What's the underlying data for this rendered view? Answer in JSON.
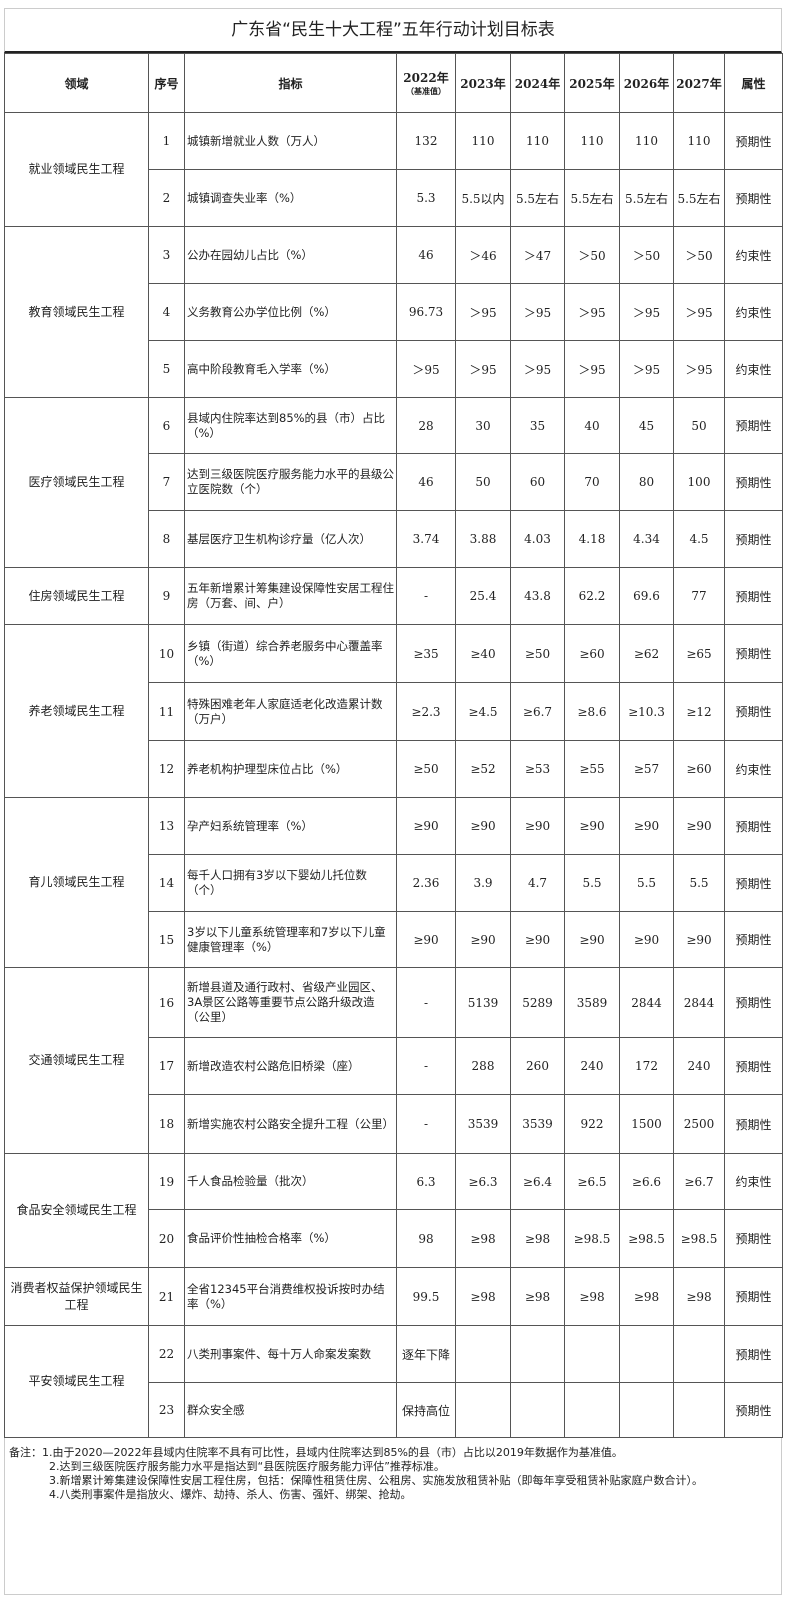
{
  "title": "广东省“民生十大工程”五年行动计划目标表",
  "headers": {
    "area": "领域",
    "no": "序号",
    "indicator": "指标",
    "y2022": "2022年",
    "y2022_note": "（基准值）",
    "y2023": "2023年",
    "y2024": "2024年",
    "y2025": "2025年",
    "y2026": "2026年",
    "y2027": "2027年",
    "attr": "属性"
  },
  "groups": [
    {
      "area": "就业领域民生工程",
      "rows": [
        {
          "no": "1",
          "indicator": "城镇新增就业人数（万人）",
          "v": [
            "132",
            "110",
            "110",
            "110",
            "110",
            "110"
          ],
          "attr": "预期性"
        },
        {
          "no": "2",
          "indicator": "城镇调查失业率（%）",
          "v": [
            "5.3",
            "5.5以内",
            "5.5左右",
            "5.5左右",
            "5.5左右",
            "5.5左右"
          ],
          "attr": "预期性"
        }
      ]
    },
    {
      "area": "教育领域民生工程",
      "rows": [
        {
          "no": "3",
          "indicator": "公办在园幼儿占比（%）",
          "v": [
            "46",
            "＞46",
            "＞47",
            "＞50",
            "＞50",
            "＞50"
          ],
          "attr": "约束性"
        },
        {
          "no": "4",
          "indicator": "义务教育公办学位比例（%）",
          "v": [
            "96.73",
            "＞95",
            "＞95",
            "＞95",
            "＞95",
            "＞95"
          ],
          "attr": "约束性"
        },
        {
          "no": "5",
          "indicator": "高中阶段教育毛入学率（%）",
          "v": [
            "＞95",
            "＞95",
            "＞95",
            "＞95",
            "＞95",
            "＞95"
          ],
          "attr": "约束性"
        }
      ]
    },
    {
      "area": "医疗领域民生工程",
      "rows": [
        {
          "no": "6",
          "indicator": "县域内住院率达到85%的县（市）占比（%）",
          "v": [
            "28",
            "30",
            "35",
            "40",
            "45",
            "50"
          ],
          "attr": "预期性"
        },
        {
          "no": "7",
          "indicator": "达到三级医院医疗服务能力水平的县级公立医院数（个）",
          "v": [
            "46",
            "50",
            "60",
            "70",
            "80",
            "100"
          ],
          "attr": "预期性"
        },
        {
          "no": "8",
          "indicator": "基层医疗卫生机构诊疗量（亿人次）",
          "v": [
            "3.74",
            "3.88",
            "4.03",
            "4.18",
            "4.34",
            "4.5"
          ],
          "attr": "预期性"
        }
      ]
    },
    {
      "area": "住房领域民生工程",
      "rows": [
        {
          "no": "9",
          "indicator": "五年新增累计筹集建设保障性安居工程住房（万套、间、户）",
          "v": [
            "-",
            "25.4",
            "43.8",
            "62.2",
            "69.6",
            "77"
          ],
          "attr": "预期性"
        }
      ]
    },
    {
      "area": "养老领域民生工程",
      "rows": [
        {
          "no": "10",
          "indicator": "乡镇（街道）综合养老服务中心覆盖率（%）",
          "v": [
            "≥35",
            "≥40",
            "≥50",
            "≥60",
            "≥62",
            "≥65"
          ],
          "attr": "预期性"
        },
        {
          "no": "11",
          "indicator": "特殊困难老年人家庭适老化改造累计数（万户）",
          "v": [
            "≥2.3",
            "≥4.5",
            "≥6.7",
            "≥8.6",
            "≥10.3",
            "≥12"
          ],
          "attr": "预期性"
        },
        {
          "no": "12",
          "indicator": "养老机构护理型床位占比（%）",
          "v": [
            "≥50",
            "≥52",
            "≥53",
            "≥55",
            "≥57",
            "≥60"
          ],
          "attr": "约束性"
        }
      ]
    },
    {
      "area": "育儿领域民生工程",
      "rows": [
        {
          "no": "13",
          "indicator": "孕产妇系统管理率（%）",
          "v": [
            "≥90",
            "≥90",
            "≥90",
            "≥90",
            "≥90",
            "≥90"
          ],
          "attr": "预期性"
        },
        {
          "no": "14",
          "indicator": "每千人口拥有3岁以下婴幼儿托位数（个）",
          "v": [
            "2.36",
            "3.9",
            "4.7",
            "5.5",
            "5.5",
            "5.5"
          ],
          "attr": "预期性"
        },
        {
          "no": "15",
          "indicator": "3岁以下儿童系统管理率和7岁以下儿童健康管理率（%）",
          "v": [
            "≥90",
            "≥90",
            "≥90",
            "≥90",
            "≥90",
            "≥90"
          ],
          "attr": "预期性"
        }
      ]
    },
    {
      "area": "交通领域民生工程",
      "rows": [
        {
          "no": "16",
          "indicator": "新增县道及通行政村、省级产业园区、3A景区公路等重要节点公路升级改造（公里）",
          "v": [
            "-",
            "5139",
            "5289",
            "3589",
            "2844",
            "2844"
          ],
          "attr": "预期性"
        },
        {
          "no": "17",
          "indicator": "新增改造农村公路危旧桥梁（座）",
          "v": [
            "-",
            "288",
            "260",
            "240",
            "172",
            "240"
          ],
          "attr": "预期性"
        },
        {
          "no": "18",
          "indicator": "新增实施农村公路安全提升工程（公里）",
          "v": [
            "-",
            "3539",
            "3539",
            "922",
            "1500",
            "2500"
          ],
          "attr": "预期性"
        }
      ]
    },
    {
      "area": "食品安全领域民生工程",
      "rows": [
        {
          "no": "19",
          "indicator": "千人食品检验量（批次）",
          "v": [
            "6.3",
            "≥6.3",
            "≥6.4",
            "≥6.5",
            "≥6.6",
            "≥6.7"
          ],
          "attr": "约束性"
        },
        {
          "no": "20",
          "indicator": "食品评价性抽检合格率（%）",
          "v": [
            "98",
            "≥98",
            "≥98",
            "≥98.5",
            "≥98.5",
            "≥98.5"
          ],
          "attr": "预期性"
        }
      ]
    },
    {
      "area": "消费者权益保护领域民生工程",
      "rows": [
        {
          "no": "21",
          "indicator": "全省12345平台消费维权投诉按时办结率（%）",
          "v": [
            "99.5",
            "≥98",
            "≥98",
            "≥98",
            "≥98",
            "≥98"
          ],
          "attr": "预期性"
        }
      ]
    },
    {
      "area": "平安领域民生工程",
      "rows": [
        {
          "no": "22",
          "indicator": "八类刑事案件、每十万人命案发案数",
          "v": [
            "逐年下降",
            "",
            "",
            "",
            "",
            ""
          ],
          "attr": "预期性"
        },
        {
          "no": "23",
          "indicator": "群众安全感",
          "v": [
            "保持高位",
            "",
            "",
            "",
            "",
            ""
          ],
          "attr": "预期性"
        }
      ]
    }
  ],
  "notes": {
    "label": "备注：",
    "items": [
      "1.由于2020—2022年县域内住院率不具有可比性，县域内住院率达到85%的县（市）占比以2019年数据作为基准值。",
      "2.达到三级医院医疗服务能力水平是指达到“县医院医疗服务能力评估”推荐标准。",
      "3.新增累计筹集建设保障性安居工程住房，包括：保障性租赁住房、公租房、实施发放租赁补贴（即每年享受租赁补贴家庭户数合计）。",
      "4.八类刑事案件是指放火、爆炸、劫持、杀人、伤害、强奸、绑架、抢劫。"
    ]
  }
}
